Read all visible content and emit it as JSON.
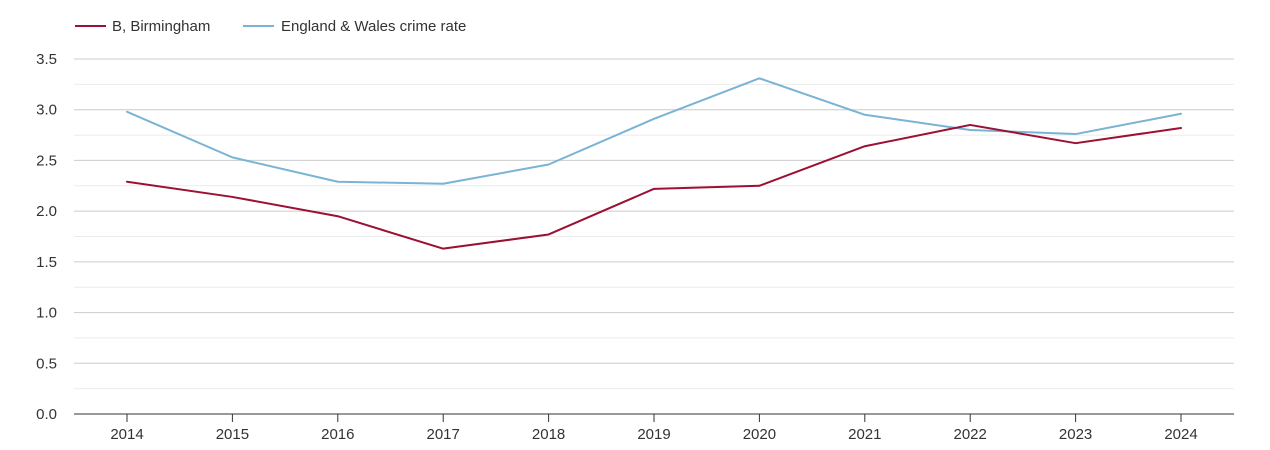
{
  "chart_data": {
    "type": "line",
    "title": "",
    "xlabel": "",
    "ylabel": "",
    "x": [
      "2014",
      "2015",
      "2016",
      "2017",
      "2018",
      "2019",
      "2020",
      "2021",
      "2022",
      "2023",
      "2024"
    ],
    "ylim": [
      0,
      3.5
    ],
    "yticks": [
      "0.0",
      "0.5",
      "1.0",
      "1.5",
      "2.0",
      "2.5",
      "3.0",
      "3.5"
    ],
    "grid": true,
    "legend_position": "top-left",
    "series": [
      {
        "name": "B, Birmingham",
        "color": "#9b1034",
        "values": [
          2.29,
          2.14,
          1.95,
          1.63,
          1.77,
          2.22,
          2.25,
          2.64,
          2.85,
          2.67,
          2.82
        ]
      },
      {
        "name": "England & Wales crime rate",
        "color": "#7ab3d3",
        "values": [
          2.98,
          2.53,
          2.29,
          2.27,
          2.46,
          2.91,
          3.31,
          2.95,
          2.8,
          2.76,
          2.96
        ]
      }
    ]
  }
}
